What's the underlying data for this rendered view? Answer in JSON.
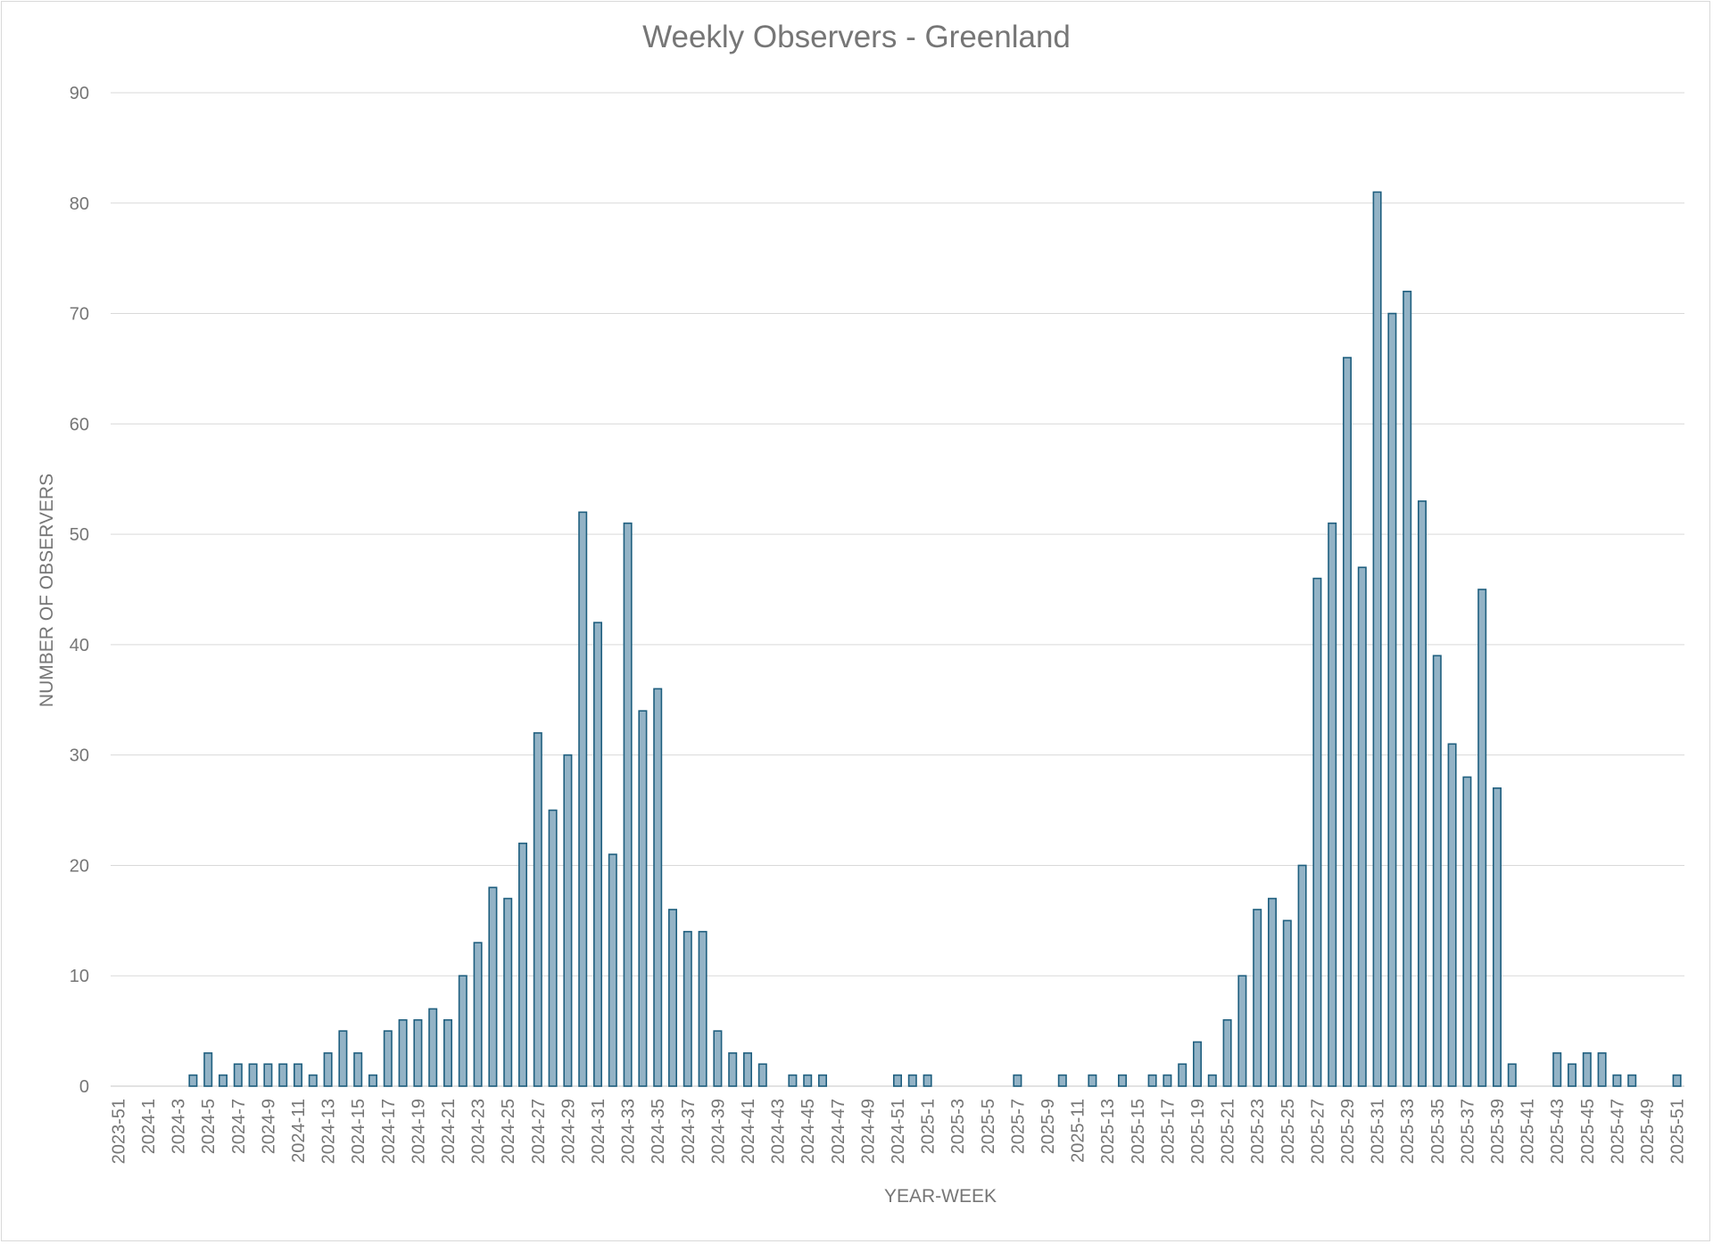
{
  "chart_data": {
    "type": "bar",
    "title": "Weekly Observers - Greenland",
    "xlabel": "YEAR-WEEK",
    "ylabel": "NUMBER OF OBSERVERS",
    "ylim": [
      0,
      90
    ],
    "yticks": [
      0,
      10,
      20,
      30,
      40,
      50,
      60,
      70,
      80,
      90
    ],
    "grid": true,
    "legend": "none",
    "colors": {
      "bar_fill": "#93b3c6",
      "bar_edge": "#1f5f7f",
      "grid": "#d9d9d9",
      "text": "#767676"
    },
    "categories": [
      "2023-51",
      "2023-52",
      "2024-1",
      "2024-2",
      "2024-3",
      "2024-4",
      "2024-5",
      "2024-6",
      "2024-7",
      "2024-8",
      "2024-9",
      "2024-10",
      "2024-11",
      "2024-12",
      "2024-13",
      "2024-14",
      "2024-15",
      "2024-16",
      "2024-17",
      "2024-18",
      "2024-19",
      "2024-20",
      "2024-21",
      "2024-22",
      "2024-23",
      "2024-24",
      "2024-25",
      "2024-26",
      "2024-27",
      "2024-28",
      "2024-29",
      "2024-30",
      "2024-31",
      "2024-32",
      "2024-33",
      "2024-34",
      "2024-35",
      "2024-36",
      "2024-37",
      "2024-38",
      "2024-39",
      "2024-40",
      "2024-41",
      "2024-42",
      "2024-43",
      "2024-44",
      "2024-45",
      "2024-46",
      "2024-47",
      "2024-48",
      "2024-49",
      "2024-50",
      "2024-51",
      "2024-52",
      "2025-1",
      "2025-2",
      "2025-3",
      "2025-4",
      "2025-5",
      "2025-6",
      "2025-7",
      "2025-8",
      "2025-9",
      "2025-10",
      "2025-11",
      "2025-12",
      "2025-13",
      "2025-14",
      "2025-15",
      "2025-16",
      "2025-17",
      "2025-18",
      "2025-19",
      "2025-20",
      "2025-21",
      "2025-22",
      "2025-23",
      "2025-24",
      "2025-25",
      "2025-26",
      "2025-27",
      "2025-28",
      "2025-29",
      "2025-30",
      "2025-31",
      "2025-32",
      "2025-33",
      "2025-34",
      "2025-35",
      "2025-36",
      "2025-37",
      "2025-38",
      "2025-39",
      "2025-40",
      "2025-41",
      "2025-42",
      "2025-43",
      "2025-44",
      "2025-45",
      "2025-46",
      "2025-47",
      "2025-48",
      "2025-49",
      "2025-50",
      "2025-51"
    ],
    "values": [
      0,
      0,
      0,
      0,
      0,
      1,
      3,
      1,
      2,
      2,
      2,
      2,
      2,
      1,
      3,
      5,
      3,
      1,
      5,
      6,
      6,
      7,
      6,
      10,
      13,
      18,
      17,
      22,
      32,
      25,
      30,
      52,
      42,
      21,
      51,
      34,
      36,
      16,
      14,
      14,
      5,
      3,
      3,
      2,
      0,
      1,
      1,
      1,
      0,
      0,
      0,
      0,
      1,
      1,
      1,
      0,
      0,
      0,
      0,
      0,
      1,
      0,
      0,
      1,
      0,
      1,
      0,
      1,
      0,
      1,
      1,
      2,
      4,
      1,
      6,
      10,
      16,
      17,
      15,
      20,
      46,
      51,
      66,
      47,
      81,
      70,
      72,
      53,
      39,
      31,
      28,
      45,
      27,
      2,
      0,
      0,
      3,
      2,
      3,
      3,
      1,
      1,
      0,
      0,
      1
    ]
  }
}
